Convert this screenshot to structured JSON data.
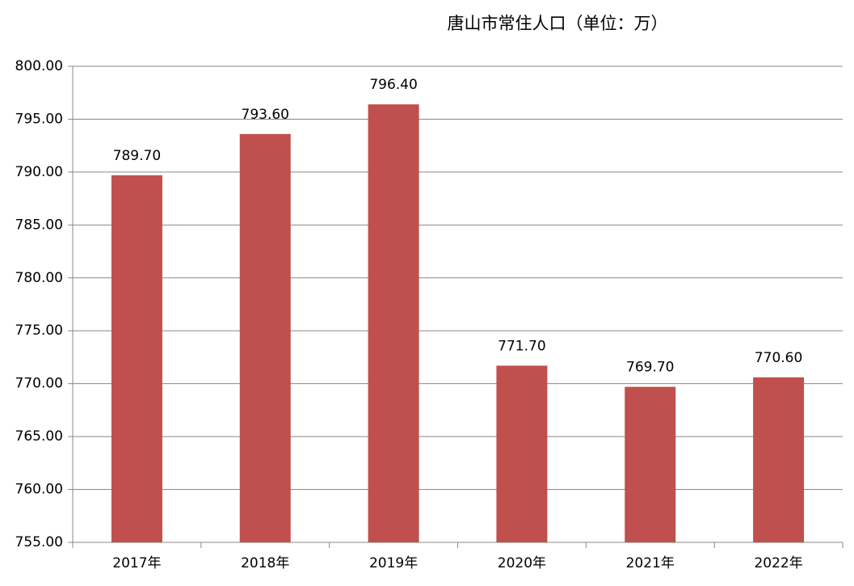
{
  "chart_data": {
    "type": "bar",
    "title": "唐山市常住人口（单位：万）",
    "categories": [
      "2017年",
      "2018年",
      "2019年",
      "2020年",
      "2021年",
      "2022年"
    ],
    "values": [
      789.7,
      793.6,
      796.4,
      771.7,
      769.7,
      770.6
    ],
    "value_labels": [
      "789.70",
      "793.60",
      "796.40",
      "771.70",
      "769.70",
      "770.60"
    ],
    "color": "#c0504d",
    "ylim": [
      755,
      800
    ],
    "yticks": [
      {
        "value": 755,
        "label": "755.00"
      },
      {
        "value": 760,
        "label": "760.00"
      },
      {
        "value": 765,
        "label": "765.00"
      },
      {
        "value": 770,
        "label": "770.00"
      },
      {
        "value": 775,
        "label": "775.00"
      },
      {
        "value": 780,
        "label": "780.00"
      },
      {
        "value": 785,
        "label": "785.00"
      },
      {
        "value": 790,
        "label": "790.00"
      },
      {
        "value": 795,
        "label": "795.00"
      },
      {
        "value": 800,
        "label": "800.00"
      }
    ],
    "grid": true
  }
}
